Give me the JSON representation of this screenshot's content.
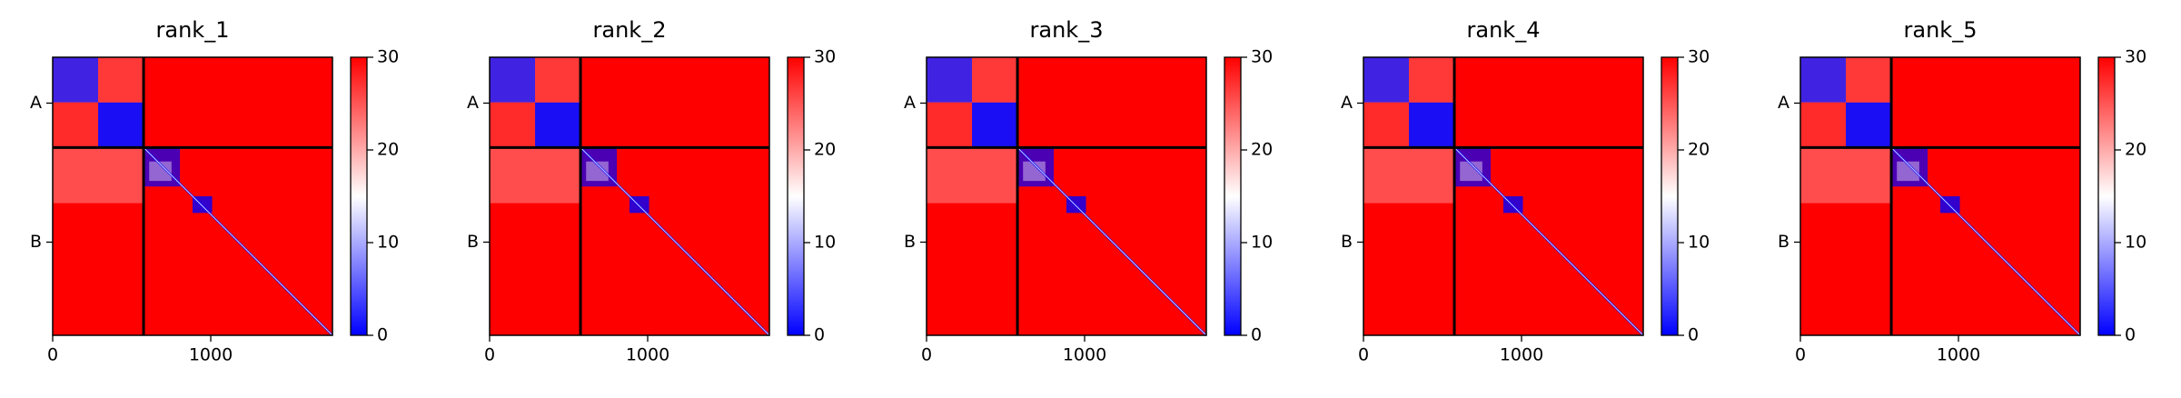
{
  "chart_data": [
    {
      "type": "heatmap",
      "title": "rank_1",
      "xlim": [
        0,
        1770
      ],
      "ylim": [
        1770,
        0
      ],
      "xticks": [
        0,
        1000
      ],
      "yticks": [
        {
          "value": 292,
          "label": "A"
        },
        {
          "value": 1177,
          "label": "B"
        }
      ],
      "boundaries": [
        575
      ],
      "clim": [
        0,
        30
      ],
      "cticks": [
        0,
        10,
        20,
        30
      ],
      "colormap": [
        "#0000ff",
        "#ffffff",
        "#ff0000"
      ]
    },
    {
      "type": "heatmap",
      "title": "rank_2",
      "xlim": [
        0,
        1770
      ],
      "ylim": [
        1770,
        0
      ],
      "xticks": [
        0,
        1000
      ],
      "yticks": [
        {
          "value": 292,
          "label": "A"
        },
        {
          "value": 1177,
          "label": "B"
        }
      ],
      "boundaries": [
        575
      ],
      "clim": [
        0,
        30
      ],
      "cticks": [
        0,
        10,
        20,
        30
      ],
      "colormap": [
        "#0000ff",
        "#ffffff",
        "#ff0000"
      ]
    },
    {
      "type": "heatmap",
      "title": "rank_3",
      "xlim": [
        0,
        1770
      ],
      "ylim": [
        1770,
        0
      ],
      "xticks": [
        0,
        1000
      ],
      "yticks": [
        {
          "value": 292,
          "label": "A"
        },
        {
          "value": 1177,
          "label": "B"
        }
      ],
      "boundaries": [
        575
      ],
      "clim": [
        0,
        30
      ],
      "cticks": [
        0,
        10,
        20,
        30
      ],
      "colormap": [
        "#0000ff",
        "#ffffff",
        "#ff0000"
      ]
    },
    {
      "type": "heatmap",
      "title": "rank_4",
      "xlim": [
        0,
        1770
      ],
      "ylim": [
        1770,
        0
      ],
      "xticks": [
        0,
        1000
      ],
      "yticks": [
        {
          "value": 292,
          "label": "A"
        },
        {
          "value": 1177,
          "label": "B"
        }
      ],
      "boundaries": [
        575
      ],
      "clim": [
        0,
        30
      ],
      "cticks": [
        0,
        10,
        20,
        30
      ],
      "colormap": [
        "#0000ff",
        "#ffffff",
        "#ff0000"
      ]
    },
    {
      "type": "heatmap",
      "title": "rank_5",
      "xlim": [
        0,
        1770
      ],
      "ylim": [
        1770,
        0
      ],
      "xticks": [
        0,
        1000
      ],
      "yticks": [
        {
          "value": 292,
          "label": "A"
        },
        {
          "value": 1177,
          "label": "B"
        }
      ],
      "boundaries": [
        575
      ],
      "clim": [
        0,
        30
      ],
      "cticks": [
        0,
        10,
        20,
        30
      ],
      "colormap": [
        "#0000ff",
        "#ffffff",
        "#ff0000"
      ]
    }
  ]
}
